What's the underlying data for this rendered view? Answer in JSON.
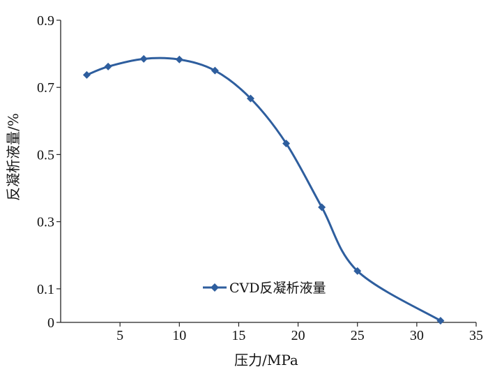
{
  "chart_data": {
    "type": "line",
    "xlabel": "压力/MPa",
    "ylabel": "反凝析液量/%",
    "xlim": [
      0,
      35
    ],
    "ylim": [
      0,
      0.9
    ],
    "x_ticks": [
      5,
      10,
      15,
      20,
      25,
      30,
      35
    ],
    "y_ticks": [
      0,
      0.1,
      0.3,
      0.5,
      0.7,
      0.9
    ],
    "y_tick_labels": [
      "0",
      "0.1",
      "0.3",
      "0.5",
      "0.7",
      "0.9"
    ],
    "grid": false,
    "legend_position": "bottom-center",
    "series": [
      {
        "name": "CVD反凝析液量",
        "color": "#2E5E9E",
        "marker": "diamond",
        "x": [
          2.2,
          4.0,
          7.0,
          10.0,
          13.0,
          16.0,
          19.0,
          22.0,
          25.0,
          32.0
        ],
        "y": [
          0.737,
          0.762,
          0.785,
          0.783,
          0.75,
          0.667,
          0.533,
          0.343,
          0.153,
          0.005
        ]
      }
    ]
  }
}
